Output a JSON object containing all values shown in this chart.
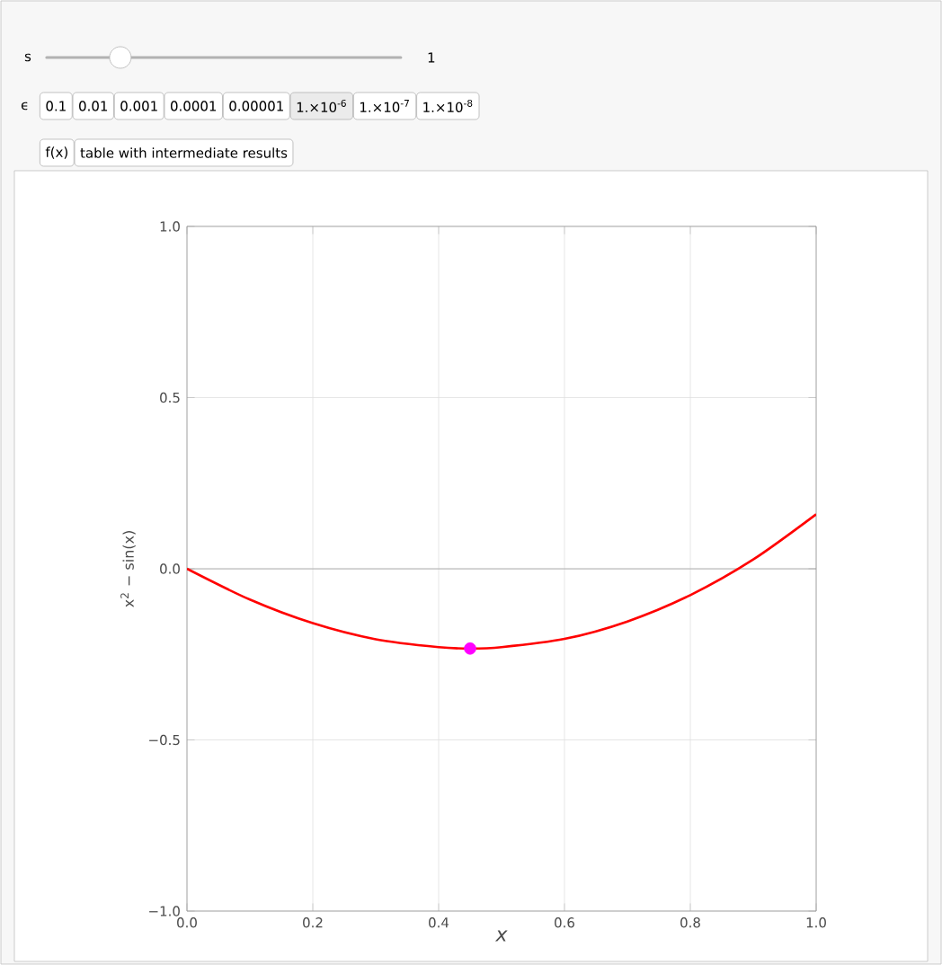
{
  "chart_data": {
    "type": "line",
    "xlabel": "x",
    "ylabel": "x$^{2}$ − sin(x)",
    "annotations": [
      "s",
      "1",
      "ϵ",
      "0.1",
      "0.01",
      "0.001",
      "0.0001",
      "0.00001",
      "1.×10$^{-6}$",
      "1.×10$^{-7}$",
      "1.×10$^{-8}$",
      "f(x)",
      "table with intermediate results"
    ],
    "series": [
      {
        "color": "#ff0000",
        "marker": "none",
        "x": [
          0,
          0.1,
          0.2,
          0.3,
          0.4,
          0.45,
          0.5,
          0.6,
          0.7,
          0.8,
          0.9,
          1.0
        ],
        "values": [
          0,
          -0.09,
          -0.159,
          -0.206,
          -0.229,
          -0.233,
          -0.229,
          -0.205,
          -0.154,
          -0.077,
          0.027,
          0.159
        ]
      },
      {
        "type": "scatter",
        "color": "#ff00ff",
        "marker": "circle",
        "x": [
          0.45
        ],
        "values": [
          -0.233
        ]
      }
    ],
    "xlim": [
      0,
      1
    ],
    "ylim": [
      -1,
      1
    ],
    "xticks": [
      {
        "value": 0,
        "label": "0.0"
      },
      {
        "value": 0.2,
        "label": "0.2"
      },
      {
        "value": 0.4,
        "label": "0.4"
      },
      {
        "value": 0.6,
        "label": "0.6"
      },
      {
        "value": 0.8,
        "label": "0.8"
      },
      {
        "value": 1,
        "label": "1.0"
      }
    ],
    "yticks": [
      {
        "value": -1,
        "label": "−1.0"
      },
      {
        "value": -0.5,
        "label": "−0.5"
      },
      {
        "value": 0,
        "label": "0.0"
      },
      {
        "value": 0.5,
        "label": "0.5"
      },
      {
        "value": 1,
        "label": "1.0"
      }
    ],
    "grid": true,
    "ref_lines": [
      {
        "axis": "y",
        "value": 0,
        "color": "#999999"
      }
    ]
  }
}
